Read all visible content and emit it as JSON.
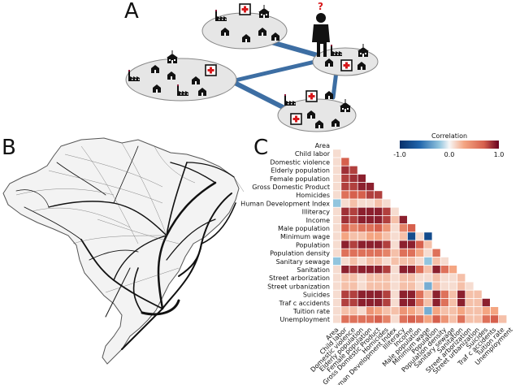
{
  "panels": {
    "a": {
      "letter": "A",
      "question_mark": "?"
    },
    "b": {
      "letter": "B"
    },
    "c": {
      "letter": "C"
    }
  },
  "colorbar": {
    "title": "Correlation",
    "ticks": [
      "-1.0",
      "0.0",
      "1.0"
    ],
    "colors": {
      "negative": "#2166ac",
      "neutral": "#f7f7f7",
      "positive": "#8b0a1a"
    }
  },
  "chart_data": {
    "type": "heatmap",
    "title": "",
    "scale": [
      -1.0,
      1.0
    ],
    "variables": [
      "Area",
      "Child labor",
      "Domestic violence",
      "Elderly population",
      "Female population",
      "Gross Domestic Product",
      "Homicides",
      "Human Development Index",
      "Illiteracy",
      "Income",
      "Male population",
      "Minimum wage",
      "Population",
      "Population density",
      "Sanitary sewage",
      "Sanitation",
      "Street arborization",
      "Street urbanization",
      "Suicides",
      "Traf c accidents",
      "Tuition rate",
      "Unemployment"
    ],
    "column_labels": [
      "Area",
      "Child labor",
      "Domestic violence",
      "Elderly population",
      "Female population",
      "Gross Domestic Product",
      "Homicides",
      "Human Development Index",
      "Illiteracy",
      "Income",
      "Male population",
      "Minimum wage",
      "Population",
      "Population density",
      "Sanitary sewage",
      "Sanitation",
      "Street arborization",
      "Street urbanization",
      "Suicides",
      "Traf c accidents",
      "Tuition rate",
      "Unemployment"
    ],
    "lower_triangle": [
      [],
      [
        0.1
      ],
      [
        0.1,
        0.7
      ],
      [
        0.1,
        0.85,
        0.8
      ],
      [
        0.1,
        0.8,
        0.85,
        0.9
      ],
      [
        0.1,
        0.8,
        0.8,
        0.9,
        0.9
      ],
      [
        0.1,
        0.6,
        0.7,
        0.7,
        0.8,
        0.8
      ],
      [
        -0.2,
        0.1,
        0.2,
        0.1,
        0.1,
        0.2,
        0.1
      ],
      [
        0.1,
        0.85,
        0.8,
        0.9,
        0.9,
        0.9,
        0.8,
        0.1
      ],
      [
        0.1,
        0.85,
        0.8,
        0.9,
        0.9,
        0.9,
        0.8,
        0.2,
        0.9
      ],
      [
        0.1,
        0.7,
        0.5,
        0.6,
        0.6,
        0.7,
        0.4,
        0.1,
        0.5,
        0.7
      ],
      [
        0.1,
        0.3,
        0.2,
        0.2,
        0.3,
        0.3,
        0.2,
        0.1,
        0.2,
        -0.8,
        0.1,
        -0.8
      ],
      [
        0.1,
        0.9,
        0.8,
        0.9,
        0.9,
        0.9,
        0.8,
        0.1,
        0.9,
        0.9,
        0.7,
        0.2
      ],
      [
        0.1,
        0.6,
        0.6,
        0.6,
        0.6,
        0.6,
        0.5,
        0.2,
        0.6,
        0.6,
        0.3,
        0.1,
        0.6
      ],
      [
        -0.2,
        0.1,
        0.2,
        0.1,
        0.2,
        0.2,
        0.1,
        0.2,
        0.2,
        0.2,
        0.1,
        -0.2,
        0.2,
        0.1
      ],
      [
        0.1,
        0.9,
        0.85,
        0.9,
        0.9,
        0.9,
        0.8,
        0.1,
        0.9,
        0.9,
        0.6,
        0.2,
        0.9,
        0.6,
        0.3
      ],
      [
        0.1,
        0.2,
        0.2,
        0.1,
        0.2,
        0.2,
        0.2,
        0.1,
        0.2,
        0.2,
        0.1,
        0.1,
        0.2,
        0.1,
        0.1,
        0.2
      ],
      [
        0.1,
        0.2,
        0.2,
        0.1,
        0.2,
        0.2,
        0.2,
        0.1,
        0.2,
        0.2,
        0.1,
        -0.3,
        0.2,
        0.1,
        0.1,
        0.2,
        0.1
      ],
      [
        0.1,
        0.8,
        0.8,
        0.9,
        0.9,
        0.9,
        0.8,
        0.1,
        0.9,
        0.9,
        0.6,
        0.2,
        0.9,
        0.6,
        0.2,
        0.9,
        0.2,
        0.2
      ],
      [
        0.1,
        0.8,
        0.8,
        0.9,
        0.9,
        0.9,
        0.8,
        0.1,
        0.9,
        0.9,
        0.6,
        0.2,
        0.9,
        0.6,
        0.2,
        0.9,
        0.2,
        0.2,
        0.9
      ],
      [
        0.1,
        0.2,
        0.2,
        0.1,
        0.4,
        0.3,
        0.2,
        0.2,
        0.4,
        0.3,
        0.2,
        -0.3,
        0.3,
        0.2,
        0.2,
        0.3,
        0.2,
        0.2,
        0.3,
        0.3
      ],
      [
        0.1,
        0.6,
        0.6,
        0.6,
        0.6,
        0.7,
        0.5,
        0.1,
        0.6,
        0.7,
        0.6,
        0.3,
        0.7,
        0.4,
        0.2,
        0.6,
        0.2,
        0.2,
        0.6,
        0.7,
        0.2
      ]
    ]
  }
}
